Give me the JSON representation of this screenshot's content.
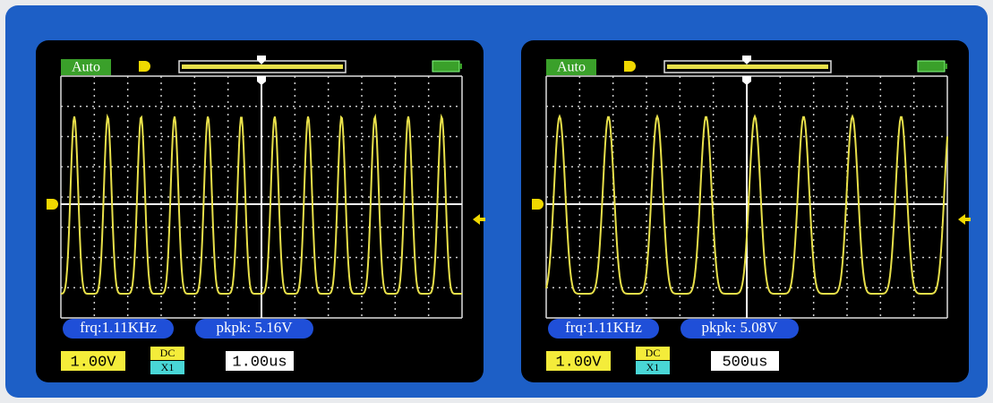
{
  "screens": [
    {
      "mode": "Auto",
      "frequency": "frq:1.11KHz",
      "peak_to_peak": "pkpk: 5.16V",
      "volts_per_div": "1.00V",
      "coupling": "DC",
      "probe": "X1",
      "time_per_div": "1.00us"
    },
    {
      "mode": "Auto",
      "frequency": "frq:1.11KHz",
      "peak_to_peak": "pkpk: 5.08V",
      "volts_per_div": "1.00V",
      "coupling": "DC",
      "probe": "X1",
      "time_per_div": "500us"
    }
  ]
}
